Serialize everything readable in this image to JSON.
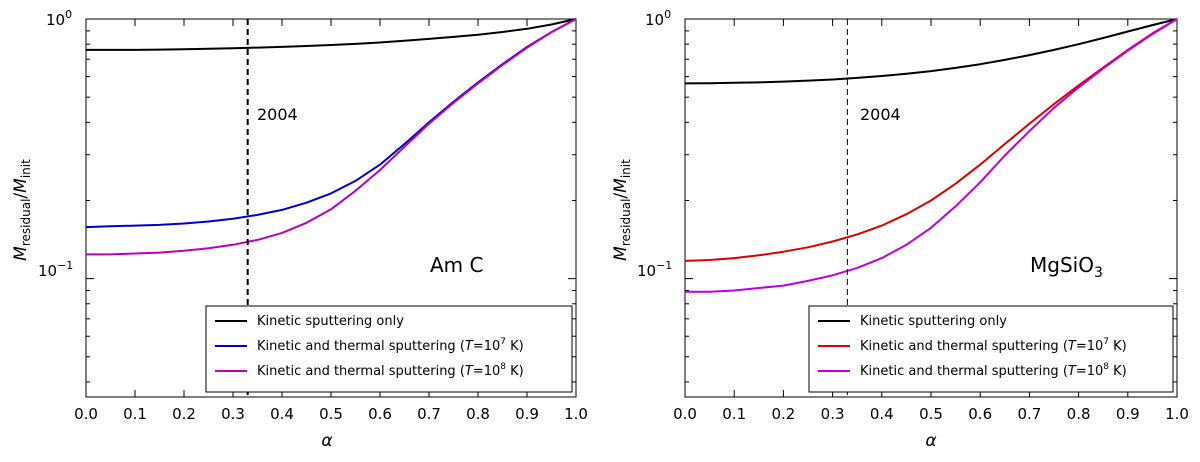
{
  "chart_data": [
    {
      "type": "line",
      "material": "Am C",
      "xlabel": "α",
      "ylabel": "M_residual/M_init",
      "ylabel_parts": {
        "m1": "M",
        "s1": "residual",
        "slash": "/",
        "m2": "M",
        "s2": "init"
      },
      "xlim": [
        0.0,
        1.0
      ],
      "ylim": [
        0.035,
        1.0
      ],
      "yscale": "log",
      "x_ticks": [
        "0.0",
        "0.1",
        "0.2",
        "0.3",
        "0.4",
        "0.5",
        "0.6",
        "0.7",
        "0.8",
        "0.9",
        "1.0"
      ],
      "y_tick_labels": [
        {
          "base": "10",
          "exp": "0",
          "value": 1.0
        },
        {
          "base": "10",
          "exp": "−1",
          "value": 0.1
        }
      ],
      "vline": {
        "x": 0.33,
        "label": "2004",
        "style": "dashed-thick"
      },
      "legend_location": "lower right",
      "x": [
        0.0,
        0.05,
        0.1,
        0.15,
        0.2,
        0.25,
        0.3,
        0.35,
        0.4,
        0.45,
        0.5,
        0.55,
        0.6,
        0.65,
        0.7,
        0.75,
        0.8,
        0.85,
        0.9,
        0.95,
        1.0
      ],
      "series": [
        {
          "name": "Kinetic sputtering only",
          "color": "#000000",
          "values": [
            0.76,
            0.76,
            0.76,
            0.762,
            0.765,
            0.768,
            0.772,
            0.776,
            0.781,
            0.787,
            0.794,
            0.802,
            0.812,
            0.824,
            0.838,
            0.853,
            0.87,
            0.891,
            0.917,
            0.952,
            1.0
          ]
        },
        {
          "name": "Kinetic and thermal sputtering (T=10⁷ K)",
          "legend_prefix": "Kinetic and thermal sputtering (",
          "legend_T": "T",
          "legend_mid": "=10",
          "legend_exp": "7",
          "legend_suffix": " K)",
          "color": "#0000cc",
          "values": [
            0.158,
            0.159,
            0.16,
            0.161,
            0.163,
            0.166,
            0.17,
            0.176,
            0.184,
            0.196,
            0.213,
            0.238,
            0.275,
            0.33,
            0.4,
            0.48,
            0.57,
            0.67,
            0.78,
            0.89,
            1.0
          ]
        },
        {
          "name": "Kinetic and thermal sputtering (T=10⁸ K)",
          "legend_prefix": "Kinetic and thermal sputtering (",
          "legend_T": "T",
          "legend_mid": "=10",
          "legend_exp": "8",
          "legend_suffix": " K)",
          "color": "#bb00bb",
          "values": [
            0.124,
            0.124,
            0.125,
            0.126,
            0.128,
            0.131,
            0.135,
            0.141,
            0.15,
            0.164,
            0.185,
            0.218,
            0.262,
            0.322,
            0.395,
            0.475,
            0.565,
            0.665,
            0.775,
            0.89,
            1.0
          ]
        }
      ]
    },
    {
      "type": "line",
      "material": "MgSiO3",
      "material_parts": {
        "base": "MgSiO",
        "sub": "3"
      },
      "xlabel": "α",
      "ylabel": "M_residual/M_init",
      "ylabel_parts": {
        "m1": "M",
        "s1": "residual",
        "slash": "/",
        "m2": "M",
        "s2": "init"
      },
      "xlim": [
        0.0,
        1.0
      ],
      "ylim": [
        0.035,
        1.0
      ],
      "yscale": "log",
      "x_ticks": [
        "0.0",
        "0.1",
        "0.2",
        "0.3",
        "0.4",
        "0.5",
        "0.6",
        "0.7",
        "0.8",
        "0.9",
        "1.0"
      ],
      "y_tick_labels": [
        {
          "base": "10",
          "exp": "0",
          "value": 1.0
        },
        {
          "base": "10",
          "exp": "−1",
          "value": 0.1
        }
      ],
      "vline": {
        "x": 0.33,
        "label": "2004",
        "style": "dashed-thin"
      },
      "legend_location": "lower right",
      "x": [
        0.0,
        0.05,
        0.1,
        0.15,
        0.2,
        0.25,
        0.3,
        0.35,
        0.4,
        0.45,
        0.5,
        0.55,
        0.6,
        0.65,
        0.7,
        0.75,
        0.8,
        0.85,
        0.9,
        0.95,
        1.0
      ],
      "series": [
        {
          "name": "Kinetic sputtering only",
          "color": "#000000",
          "values": [
            0.565,
            0.566,
            0.568,
            0.57,
            0.574,
            0.579,
            0.585,
            0.593,
            0.603,
            0.615,
            0.63,
            0.648,
            0.67,
            0.696,
            0.726,
            0.76,
            0.8,
            0.845,
            0.895,
            0.947,
            1.0
          ]
        },
        {
          "name": "Kinetic and thermal sputtering (T=10⁷ K)",
          "legend_prefix": "Kinetic and thermal sputtering (",
          "legend_T": "T",
          "legend_mid": "=10",
          "legend_exp": "7",
          "legend_suffix": " K)",
          "color": "#dd0000",
          "values": [
            0.117,
            0.118,
            0.12,
            0.123,
            0.127,
            0.132,
            0.139,
            0.148,
            0.16,
            0.177,
            0.2,
            0.232,
            0.275,
            0.33,
            0.395,
            0.47,
            0.555,
            0.65,
            0.76,
            0.88,
            1.0
          ]
        },
        {
          "name": "Kinetic and thermal sputtering (T=10⁸ K)",
          "legend_prefix": "Kinetic and thermal sputtering (",
          "legend_T": "T",
          "legend_mid": "=10",
          "legend_exp": "8",
          "legend_suffix": " K)",
          "color": "#bb00dd",
          "values": [
            0.089,
            0.089,
            0.09,
            0.092,
            0.094,
            0.098,
            0.103,
            0.11,
            0.12,
            0.135,
            0.157,
            0.19,
            0.235,
            0.298,
            0.37,
            0.455,
            0.545,
            0.645,
            0.755,
            0.875,
            1.0
          ]
        }
      ]
    }
  ]
}
